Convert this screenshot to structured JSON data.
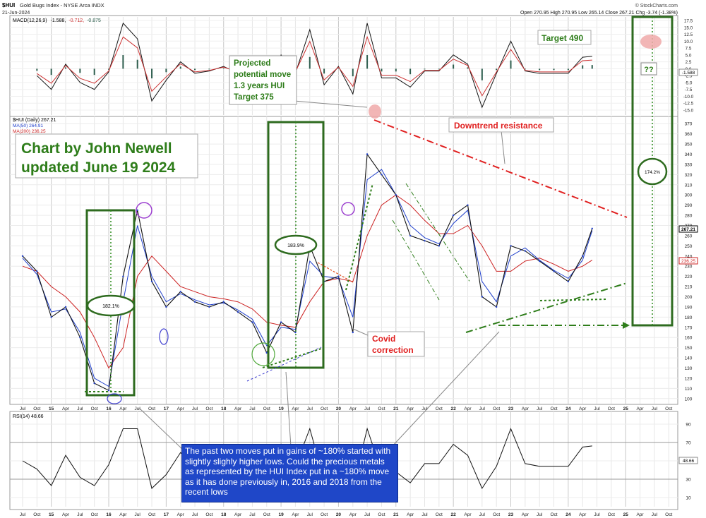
{
  "header": {
    "symbol": "$HUI",
    "name": "Gold Bugs Index - NYSE Arca INDX",
    "date": "21-Jun-2024",
    "source": "© StockCharts.com",
    "quote": "Open 270.95  High 270.95  Low 265.14  Close 267.21  Chg -3.74 (-1.38%)",
    "quote_change_color": "#d00000"
  },
  "macd": {
    "legend_name": "MACD(12,26,9)",
    "legend_v1": "-1.588,",
    "legend_v2": "-0.712,",
    "legend_v3": "-0.875",
    "right_value": "-1.588",
    "yticks": [
      "17.5",
      "15.0",
      "12.5",
      "10.0",
      "7.5",
      "5.0",
      "2.5",
      "0.0",
      "-2.5",
      "-5.0",
      "-7.5",
      "-10.0",
      "-12.5",
      "-15.0"
    ],
    "colors": {
      "macd": "#111111",
      "signal": "#cc3333",
      "histogram": "#2e5e4e"
    }
  },
  "price_panel": {
    "legend": [
      "$HUI (Daily) 267.21",
      "MA(50) 264.91",
      "MA(200) 236.25"
    ],
    "legend_colors": [
      "#000000",
      "#1f3fcc",
      "#cc2222"
    ],
    "last_price_label": "267.21",
    "ma200_label": "236.25",
    "yticks": [
      "370",
      "360",
      "350",
      "340",
      "330",
      "320",
      "310",
      "300",
      "290",
      "280",
      "270",
      "260",
      "250",
      "240",
      "230",
      "220",
      "210",
      "200",
      "190",
      "180",
      "170",
      "160",
      "150",
      "140",
      "130",
      "120",
      "110",
      "100"
    ]
  },
  "x_axis": {
    "labels": [
      "Jul",
      "Oct",
      "15",
      "Apr",
      "Jul",
      "Oct",
      "16",
      "Apr",
      "Jul",
      "Oct",
      "17",
      "Apr",
      "Jul",
      "Oct",
      "18",
      "Apr",
      "Jul",
      "Oct",
      "19",
      "Apr",
      "Jul",
      "Oct",
      "20",
      "Apr",
      "Jul",
      "Oct",
      "21",
      "Apr",
      "Jul",
      "Oct",
      "22",
      "Apr",
      "Jul",
      "Oct",
      "23",
      "Apr",
      "Jul",
      "Oct",
      "24",
      "Apr",
      "Jul",
      "Oct",
      "25",
      "Apr",
      "Jul",
      "Oct"
    ]
  },
  "rsi": {
    "legend": "RSI(14) 48.66",
    "right_value": "48.66",
    "yticks": [
      "90",
      "70",
      "50",
      "30",
      "10"
    ]
  },
  "annotations": {
    "title_line1": "Chart by John Newell",
    "title_line2": "updated June 19 2024",
    "projection_line1": "Projected",
    "projection_line2": "potential move",
    "projection_line3": "1.3 years HUI",
    "projection_line4": "Target 375",
    "target_490": "Target 490",
    "question": "??",
    "downtrend": "Downtrend resistance",
    "covid_line1": "Covid",
    "covid_line2": "correction",
    "gain_2016": "182.1%",
    "gain_2018": "183.9%",
    "gain_2024": "174.2%",
    "note": "The past two  moves put in gains of ~180% started with slightly slighly higher lows. Could the precious metals as represented by the HUI Index put in a ~180% move as it has done previously in, 2016 and 2018 from the recent lows"
  },
  "chart_data": {
    "type": "line",
    "title": "$HUI Gold Bugs Index - NYSE Arca INDX",
    "x": [
      "2014-07",
      "2014-10",
      "2015-01",
      "2015-04",
      "2015-07",
      "2015-10",
      "2016-01",
      "2016-04",
      "2016-07",
      "2016-10",
      "2017-01",
      "2017-04",
      "2017-07",
      "2017-10",
      "2018-01",
      "2018-04",
      "2018-07",
      "2018-10",
      "2019-01",
      "2019-04",
      "2019-07",
      "2019-10",
      "2020-01",
      "2020-04",
      "2020-07",
      "2020-10",
      "2021-01",
      "2021-04",
      "2021-07",
      "2021-10",
      "2022-01",
      "2022-04",
      "2022-07",
      "2022-10",
      "2023-01",
      "2023-04",
      "2023-07",
      "2023-10",
      "2024-01",
      "2024-04",
      "2024-06"
    ],
    "series": [
      {
        "name": "$HUI (Daily)",
        "values": [
          240,
          225,
          180,
          190,
          160,
          115,
          108,
          220,
          285,
          215,
          190,
          205,
          195,
          190,
          195,
          185,
          175,
          145,
          175,
          165,
          250,
          215,
          220,
          165,
          340,
          320,
          300,
          260,
          255,
          250,
          280,
          290,
          200,
          190,
          250,
          245,
          235,
          225,
          215,
          240,
          267
        ]
      },
      {
        "name": "MA(50)",
        "values": [
          238,
          222,
          185,
          188,
          165,
          120,
          112,
          195,
          270,
          220,
          195,
          203,
          197,
          192,
          194,
          187,
          178,
          152,
          170,
          168,
          235,
          220,
          218,
          180,
          315,
          325,
          300,
          270,
          258,
          252,
          272,
          285,
          215,
          195,
          240,
          248,
          236,
          226,
          218,
          236,
          265
        ]
      },
      {
        "name": "MA(200)",
        "values": [
          230,
          225,
          210,
          200,
          185,
          160,
          130,
          150,
          220,
          240,
          225,
          210,
          205,
          200,
          198,
          195,
          188,
          175,
          172,
          170,
          195,
          215,
          218,
          215,
          260,
          290,
          300,
          290,
          275,
          262,
          262,
          270,
          250,
          225,
          225,
          235,
          238,
          232,
          225,
          230,
          236
        ]
      }
    ],
    "ylim": [
      95,
      375
    ],
    "ylabel": "",
    "xlabel": "",
    "last_value": 267.21
  }
}
